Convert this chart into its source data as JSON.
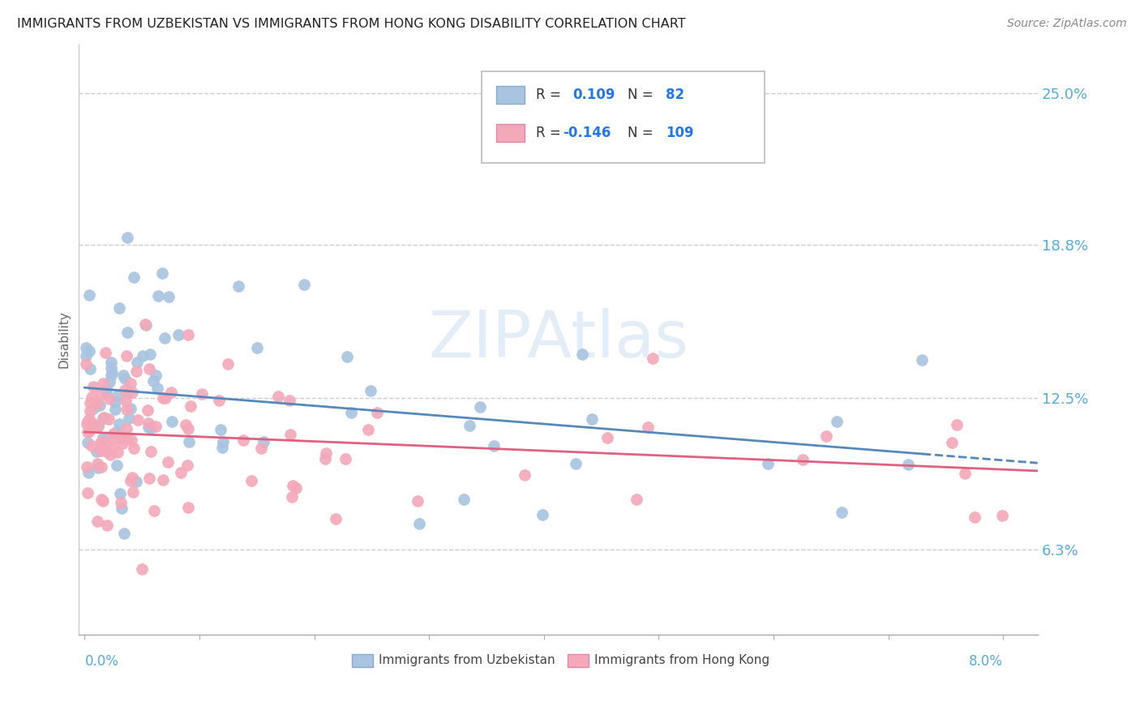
{
  "title": "IMMIGRANTS FROM UZBEKISTAN VS IMMIGRANTS FROM HONG KONG DISABILITY CORRELATION CHART",
  "source": "Source: ZipAtlas.com",
  "ylabel": "Disability",
  "y_ticks": [
    0.063,
    0.125,
    0.188,
    0.25
  ],
  "y_tick_labels": [
    "6.3%",
    "12.5%",
    "18.8%",
    "25.0%"
  ],
  "x_lim": [
    -0.0005,
    0.083
  ],
  "y_lim": [
    0.028,
    0.27
  ],
  "color_uzbekistan": "#A8C4E0",
  "color_hongkong": "#F4A8B8",
  "color_line_uzbekistan": "#5588BB",
  "color_line_hongkong": "#E06080",
  "color_axis_labels": "#55AADD",
  "watermark_text": "ZIPAtlas",
  "watermark_color": "#C8DCF0"
}
